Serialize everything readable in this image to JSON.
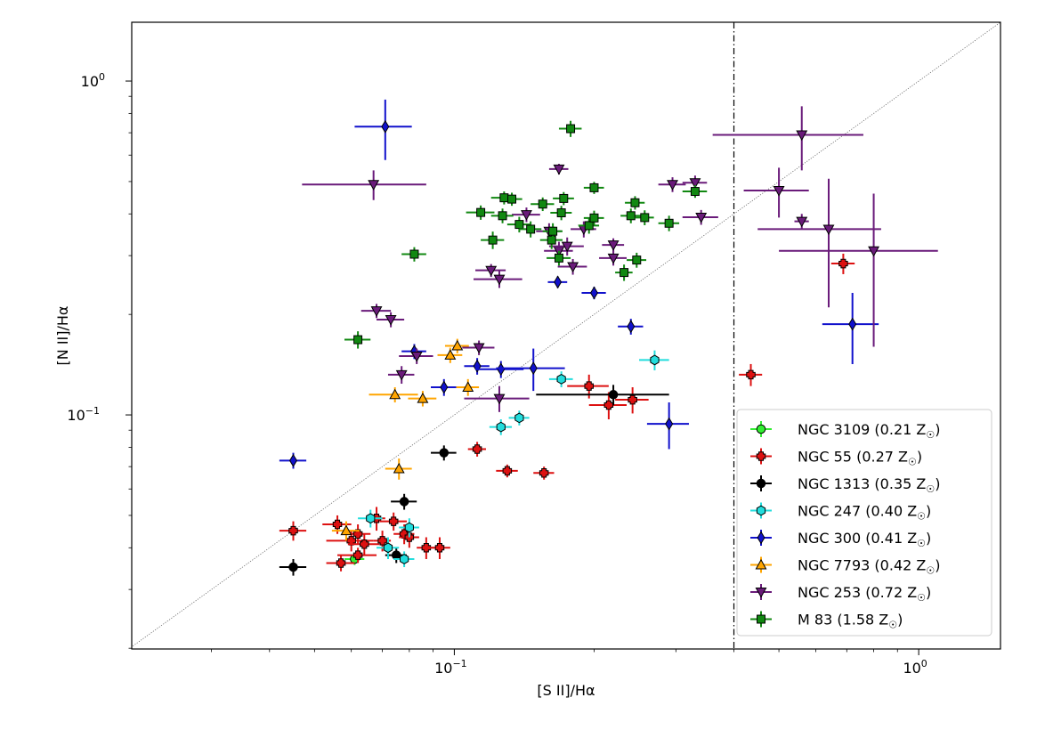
{
  "chart_data": {
    "type": "scatter",
    "title": "",
    "xlabel": "[S II]/Hα",
    "ylabel": "[N II]/Hα",
    "xscale": "log",
    "yscale": "log",
    "xlim": [
      0.0202,
      1.5
    ],
    "ylim": [
      0.0199,
      1.5
    ],
    "x_major_ticks": [
      {
        "value": 0.1,
        "base": "10",
        "exp": "−1"
      },
      {
        "value": 1.0,
        "base": "10",
        "exp": "0"
      }
    ],
    "y_major_ticks": [
      {
        "value": 0.1,
        "base": "10",
        "exp": "−1"
      },
      {
        "value": 1.0,
        "base": "10",
        "exp": "0"
      }
    ],
    "reference_lines": [
      {
        "name": "one-to-one",
        "style": "dotted",
        "color": "#555555",
        "description": "y = x"
      },
      {
        "name": "vertical-cut",
        "style": "dashdot",
        "color": "#000000",
        "x": 0.4
      }
    ],
    "legend_position": "lower right",
    "series": [
      {
        "name": "NGC 3109",
        "metallicity": "0.21",
        "marker": "circle",
        "color": "#33ee33",
        "points": [
          [
            0.061,
            0.037,
            0.003,
            0.0015
          ]
        ]
      },
      {
        "name": "NGC 55",
        "metallicity": "0.27",
        "marker": "plus",
        "color": "#dd1111",
        "points": [
          [
            0.045,
            0.045,
            0.003,
            0.003
          ],
          [
            0.056,
            0.047,
            0.004,
            0.003
          ],
          [
            0.062,
            0.044,
            0.004,
            0.003
          ],
          [
            0.06,
            0.042,
            0.007,
            0.003
          ],
          [
            0.064,
            0.041,
            0.005,
            0.003
          ],
          [
            0.068,
            0.049,
            0.003,
            0.004
          ],
          [
            0.07,
            0.042,
            0.003,
            0.003
          ],
          [
            0.074,
            0.048,
            0.005,
            0.003
          ],
          [
            0.078,
            0.044,
            0.004,
            0.003
          ],
          [
            0.08,
            0.043,
            0.004,
            0.003
          ],
          [
            0.062,
            0.038,
            0.006,
            0.002
          ],
          [
            0.057,
            0.036,
            0.004,
            0.002
          ],
          [
            0.087,
            0.04,
            0.004,
            0.003
          ],
          [
            0.093,
            0.04,
            0.005,
            0.003
          ],
          [
            0.112,
            0.079,
            0.005,
            0.004
          ],
          [
            0.13,
            0.068,
            0.007,
            0.003
          ],
          [
            0.156,
            0.067,
            0.008,
            0.003
          ],
          [
            0.195,
            0.122,
            0.02,
            0.01
          ],
          [
            0.215,
            0.107,
            0.02,
            0.01
          ],
          [
            0.242,
            0.111,
            0.02,
            0.01
          ],
          [
            0.435,
            0.132,
            0.025,
            0.01
          ],
          [
            0.688,
            0.284,
            0.04,
            0.02
          ]
        ]
      },
      {
        "name": "NGC 1313",
        "metallicity": "0.35",
        "marker": "circle",
        "color": "#000000",
        "points": [
          [
            0.045,
            0.035,
            0.003,
            0.002
          ],
          [
            0.075,
            0.038,
            0.004,
            0.002
          ],
          [
            0.078,
            0.055,
            0.005,
            0.003
          ],
          [
            0.095,
            0.077,
            0.006,
            0.004
          ],
          [
            0.22,
            0.115,
            0.07,
            0.008
          ]
        ]
      },
      {
        "name": "NGC 247",
        "metallicity": "0.40",
        "marker": "hexagon",
        "color": "#22dddd",
        "points": [
          [
            0.066,
            0.049,
            0.004,
            0.003
          ],
          [
            0.072,
            0.04,
            0.004,
            0.003
          ],
          [
            0.078,
            0.037,
            0.004,
            0.002
          ],
          [
            0.08,
            0.046,
            0.004,
            0.003
          ],
          [
            0.126,
            0.092,
            0.007,
            0.005
          ],
          [
            0.138,
            0.098,
            0.007,
            0.005
          ],
          [
            0.17,
            0.128,
            0.01,
            0.007
          ],
          [
            0.27,
            0.146,
            0.02,
            0.01
          ]
        ]
      },
      {
        "name": "NGC 300",
        "metallicity": "0.41",
        "marker": "diamond",
        "color": "#1111cc",
        "points": [
          [
            0.045,
            0.073,
            0.003,
            0.004
          ],
          [
            0.071,
            0.73,
            0.01,
            0.15
          ],
          [
            0.082,
            0.155,
            0.005,
            0.008
          ],
          [
            0.095,
            0.121,
            0.006,
            0.007
          ],
          [
            0.112,
            0.14,
            0.007,
            0.008
          ],
          [
            0.126,
            0.137,
            0.015,
            0.008
          ],
          [
            0.148,
            0.138,
            0.025,
            0.02
          ],
          [
            0.167,
            0.25,
            0.008,
            0.01
          ],
          [
            0.2,
            0.232,
            0.012,
            0.01
          ],
          [
            0.24,
            0.184,
            0.015,
            0.01
          ],
          [
            0.29,
            0.094,
            0.03,
            0.015
          ],
          [
            0.72,
            0.187,
            0.1,
            0.045
          ]
        ]
      },
      {
        "name": "NGC 7793",
        "metallicity": "0.42",
        "marker": "triangle-up",
        "color": "#ffa500",
        "points": [
          [
            0.0585,
            0.045,
            0.004,
            0.003
          ],
          [
            0.0745,
            0.115,
            0.009,
            0.006
          ],
          [
            0.076,
            0.069,
            0.005,
            0.005
          ],
          [
            0.0855,
            0.112,
            0.006,
            0.006
          ],
          [
            0.098,
            0.151,
            0.006,
            0.008
          ],
          [
            0.1015,
            0.161,
            0.006,
            0.008
          ],
          [
            0.107,
            0.121,
            0.006,
            0.007
          ]
        ]
      },
      {
        "name": "NGC 253",
        "metallicity": "0.72",
        "marker": "triangle-down",
        "color": "#6a1b7a",
        "points": [
          [
            0.067,
            0.49,
            0.02,
            0.05
          ],
          [
            0.068,
            0.205,
            0.005,
            0.01
          ],
          [
            0.073,
            0.193,
            0.005,
            0.01
          ],
          [
            0.077,
            0.132,
            0.005,
            0.008
          ],
          [
            0.083,
            0.15,
            0.007,
            0.008
          ],
          [
            0.113,
            0.159,
            0.009,
            0.008
          ],
          [
            0.12,
            0.271,
            0.009,
            0.012
          ],
          [
            0.125,
            0.255,
            0.015,
            0.015
          ],
          [
            0.125,
            0.112,
            0.02,
            0.01
          ],
          [
            0.143,
            0.398,
            0.01,
            0.02
          ],
          [
            0.16,
            0.355,
            0.01,
            0.02
          ],
          [
            0.168,
            0.31,
            0.012,
            0.02
          ],
          [
            0.168,
            0.545,
            0.008,
            0.02
          ],
          [
            0.175,
            0.32,
            0.015,
            0.02
          ],
          [
            0.18,
            0.278,
            0.013,
            0.015
          ],
          [
            0.19,
            0.36,
            0.012,
            0.02
          ],
          [
            0.22,
            0.323,
            0.012,
            0.015
          ],
          [
            0.22,
            0.295,
            0.015,
            0.015
          ],
          [
            0.295,
            0.49,
            0.02,
            0.025
          ],
          [
            0.33,
            0.496,
            0.02,
            0.025
          ],
          [
            0.34,
            0.391,
            0.03,
            0.02
          ],
          [
            0.56,
            0.69,
            0.2,
            0.15
          ],
          [
            0.5,
            0.47,
            0.08,
            0.08
          ],
          [
            0.56,
            0.38,
            0.02,
            0.02
          ],
          [
            0.64,
            0.36,
            0.19,
            0.15
          ],
          [
            0.8,
            0.31,
            0.3,
            0.15
          ]
        ]
      },
      {
        "name": "M 83",
        "metallicity": "1.58",
        "marker": "square",
        "color": "#118811",
        "points": [
          [
            0.062,
            0.168,
            0.004,
            0.01
          ],
          [
            0.082,
            0.303,
            0.005,
            0.015
          ],
          [
            0.114,
            0.404,
            0.008,
            0.02
          ],
          [
            0.121,
            0.334,
            0.007,
            0.02
          ],
          [
            0.127,
            0.395,
            0.007,
            0.02
          ],
          [
            0.128,
            0.447,
            0.008,
            0.02
          ],
          [
            0.133,
            0.443,
            0.007,
            0.02
          ],
          [
            0.138,
            0.372,
            0.008,
            0.02
          ],
          [
            0.146,
            0.36,
            0.008,
            0.02
          ],
          [
            0.155,
            0.428,
            0.009,
            0.02
          ],
          [
            0.162,
            0.334,
            0.009,
            0.02
          ],
          [
            0.163,
            0.355,
            0.008,
            0.02
          ],
          [
            0.168,
            0.295,
            0.01,
            0.015
          ],
          [
            0.17,
            0.403,
            0.009,
            0.02
          ],
          [
            0.172,
            0.445,
            0.009,
            0.02
          ],
          [
            0.178,
            0.72,
            0.01,
            0.04
          ],
          [
            0.195,
            0.369,
            0.01,
            0.02
          ],
          [
            0.2,
            0.389,
            0.01,
            0.02
          ],
          [
            0.2,
            0.479,
            0.01,
            0.02
          ],
          [
            0.232,
            0.267,
            0.01,
            0.015
          ],
          [
            0.24,
            0.395,
            0.012,
            0.02
          ],
          [
            0.245,
            0.432,
            0.012,
            0.02
          ],
          [
            0.247,
            0.291,
            0.012,
            0.015
          ],
          [
            0.257,
            0.39,
            0.012,
            0.02
          ],
          [
            0.29,
            0.375,
            0.015,
            0.02
          ],
          [
            0.33,
            0.467,
            0.02,
            0.02
          ]
        ]
      }
    ]
  }
}
